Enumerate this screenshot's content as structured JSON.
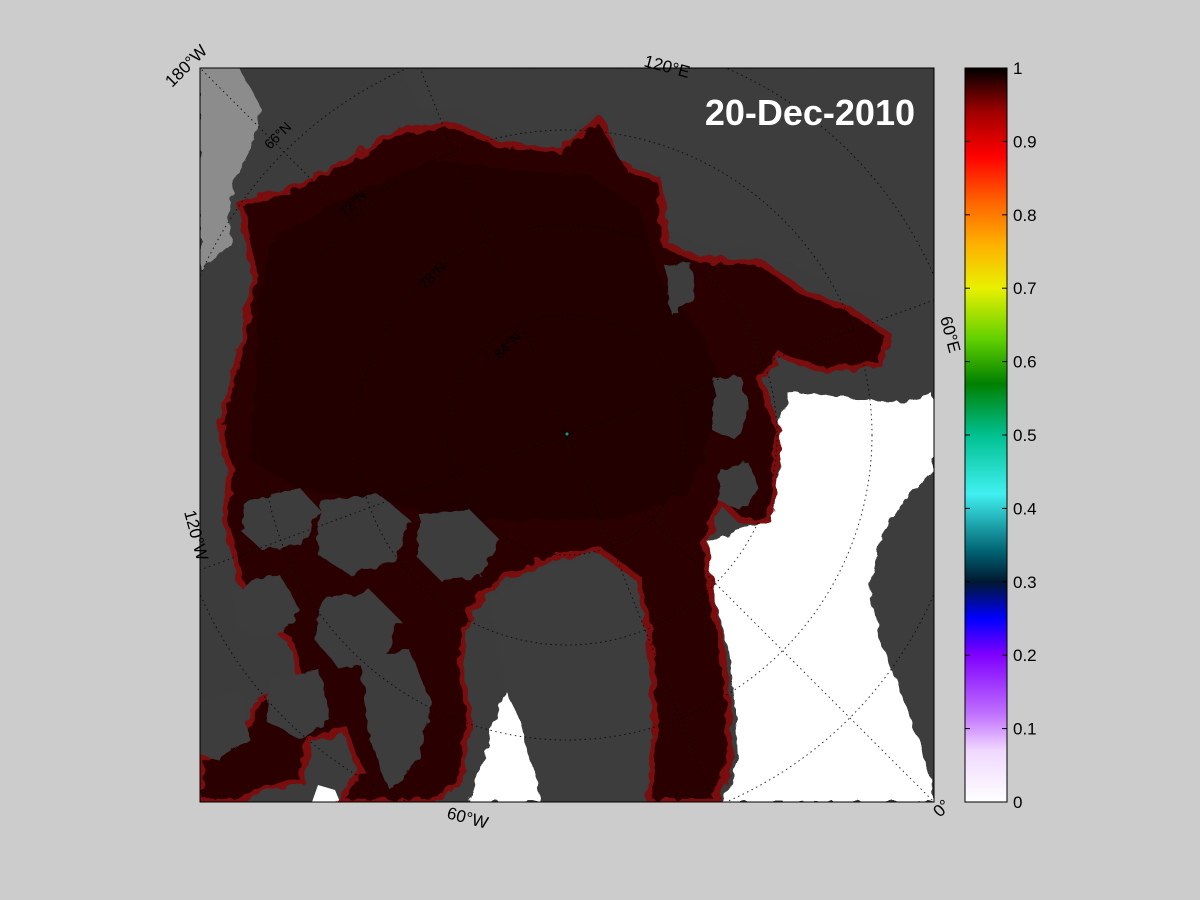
{
  "map": {
    "date": "20-Dec-2010",
    "longitude_labels": [
      "180°W",
      "120°E",
      "60°E",
      "0°",
      "60°W",
      "120°W"
    ],
    "latitude_labels": [
      "66°N",
      "72°N",
      "78°N",
      "84°N"
    ],
    "colors": {
      "background": "#cccccc",
      "land": "#3c3c3c",
      "land_ice": "#8c8c8c",
      "open_water": "#ffffff",
      "pack_ice": "#2a0606"
    }
  },
  "colorbar": {
    "min": 0,
    "max": 1,
    "ticks": [
      "0",
      "0.1",
      "0.2",
      "0.3",
      "0.4",
      "0.5",
      "0.6",
      "0.7",
      "0.8",
      "0.9",
      "1"
    ],
    "palette": [
      "#ffffff",
      "#e0b0ff",
      "#b040ff",
      "#0000ff",
      "#002040",
      "#00c0b0",
      "#00c000",
      "#e0f000",
      "#ff9000",
      "#ff0000",
      "#a00000",
      "#000000"
    ]
  }
}
